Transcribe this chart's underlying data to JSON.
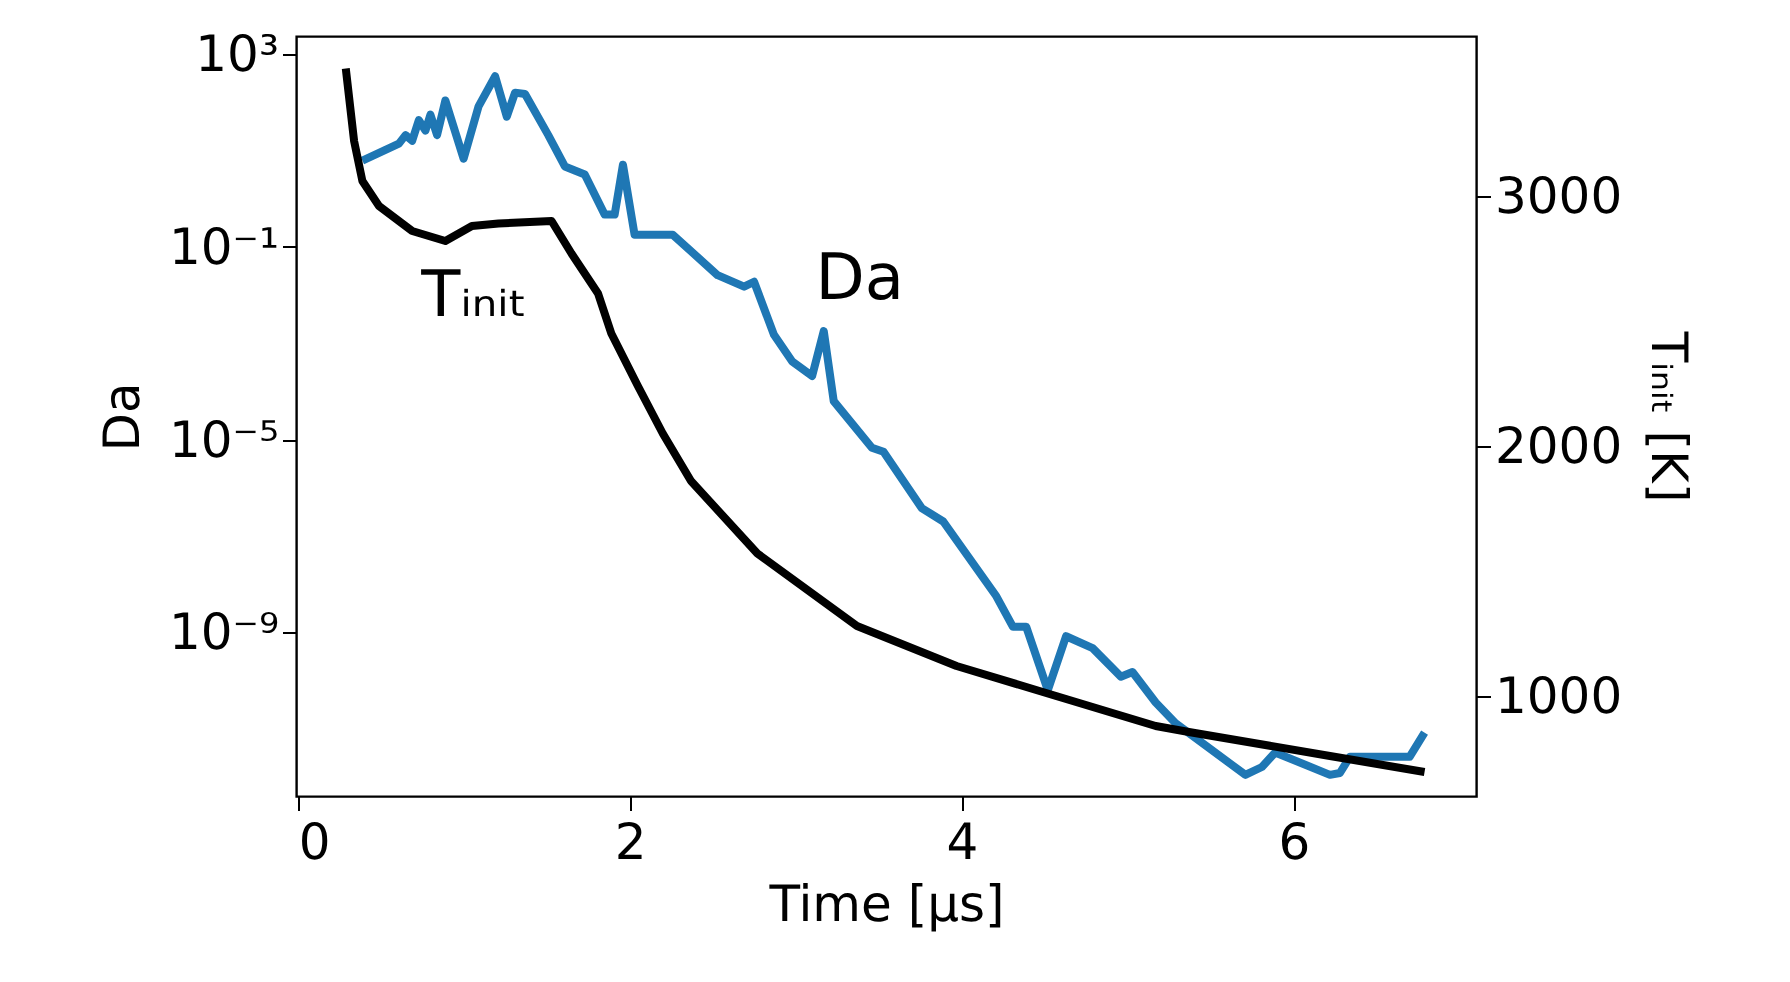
{
  "chart_data": {
    "type": "line",
    "xlabel": "Time [μs]",
    "ylabel": "Da",
    "y2label": "Tᵢₙᵢₜ [K]",
    "log": "y",
    "grid": false,
    "marker": "none",
    "line_style": "solid",
    "xlim": [
      -0.01,
      7.1
    ],
    "xticks": [
      0,
      2,
      4,
      6
    ],
    "ylim": [
      4e-13,
      2400
    ],
    "yticks": [
      {
        "value": 1000,
        "label": "10³"
      },
      {
        "value": 0.1,
        "label": "10⁻¹"
      },
      {
        "value": 1e-05,
        "label": "10⁻⁵"
      },
      {
        "value": 1e-09,
        "label": "10⁻⁹"
      }
    ],
    "y2lim": [
      600,
      3640
    ],
    "y2ticks": [
      1000,
      2000,
      3000
    ],
    "series": [
      {
        "name": "Da",
        "color": "#1f77b4",
        "x": [
          0.39,
          0.61,
          0.65,
          0.69,
          0.73,
          0.77,
          0.8,
          0.84,
          0.89,
          1.0,
          1.09,
          1.19,
          1.26,
          1.31,
          1.37,
          1.51,
          1.61,
          1.73,
          1.85,
          1.91,
          1.96,
          2.03,
          2.26,
          2.53,
          2.69,
          2.75,
          2.87,
          2.98,
          3.1,
          3.17,
          3.23,
          3.46,
          3.53,
          3.76,
          3.89,
          4.21,
          4.31,
          4.39,
          4.52,
          4.63,
          4.79,
          4.96,
          5.03,
          5.17,
          5.29,
          5.71,
          5.81,
          5.89,
          6.22,
          6.28,
          6.34,
          6.7,
          6.79
        ],
        "values": [
          6.2,
          14,
          21,
          16,
          43,
          26,
          56,
          21,
          110,
          6.8,
          83,
          350,
          51,
          160,
          150,
          21,
          4.7,
          3.2,
          0.47,
          0.47,
          5.1,
          0.18,
          0.18,
          0.026,
          0.015,
          0.019,
          0.0015,
          0.00042,
          0.00021,
          0.0018,
          6.3e-05,
          6.8e-06,
          5.6e-06,
          3.8e-07,
          2e-07,
          5.6e-09,
          1.3e-09,
          1.3e-09,
          6.3e-11,
          8.3e-10,
          4.7e-10,
          1.2e-10,
          1.5e-10,
          3.5e-11,
          1.3e-11,
          1.1e-12,
          1.6e-12,
          3.2e-12,
          1.1e-12,
          1.2e-12,
          2.6e-12,
          2.6e-12,
          8.3e-12
        ]
      },
      {
        "name": "Tᵢₙᵢₜ",
        "color": "#000000",
        "axis": "y2",
        "x": [
          0.29,
          0.34,
          0.39,
          0.49,
          0.69,
          0.89,
          1.05,
          1.21,
          1.53,
          1.65,
          1.81,
          1.89,
          2.05,
          2.2,
          2.37,
          2.77,
          3.37,
          3.97,
          4.49,
          4.57,
          5.17,
          5.37,
          6.22,
          6.79
        ],
        "values": [
          3510,
          3220,
          3060,
          2960,
          2860,
          2820,
          2880,
          2890,
          2900,
          2770,
          2610,
          2450,
          2240,
          2050,
          1860,
          1570,
          1280,
          1120,
          1016,
          1000,
          880,
          856,
          760,
          696
        ]
      }
    ]
  }
}
